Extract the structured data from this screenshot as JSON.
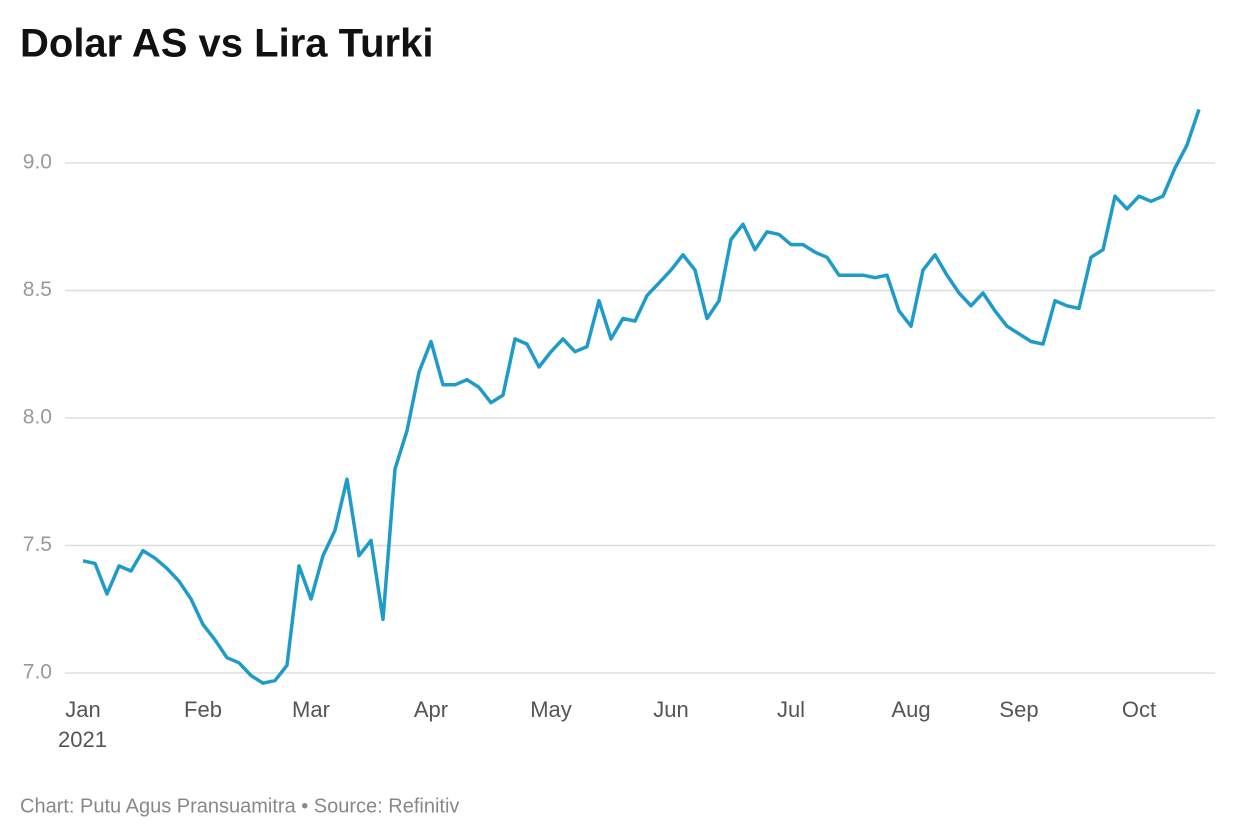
{
  "chart_data": {
    "type": "line",
    "title": "Dolar AS vs Lira Turki",
    "annotation": "2021",
    "footer": "Chart: Putu Agus Pransuamitra • Source: Refinitiv",
    "color": "#1f9bc9",
    "grid": true,
    "categories": [
      "Jan",
      null,
      null,
      null,
      null,
      null,
      null,
      null,
      null,
      null,
      "Feb",
      null,
      null,
      null,
      null,
      null,
      null,
      null,
      null,
      "Mar",
      null,
      null,
      null,
      null,
      null,
      null,
      null,
      null,
      null,
      "Apr",
      null,
      null,
      null,
      null,
      null,
      null,
      null,
      null,
      null,
      "May",
      null,
      null,
      null,
      null,
      null,
      null,
      null,
      null,
      null,
      "Jun",
      null,
      null,
      null,
      null,
      null,
      null,
      null,
      null,
      null,
      "Jul",
      null,
      null,
      null,
      null,
      null,
      null,
      null,
      null,
      null,
      "Aug",
      null,
      null,
      null,
      null,
      null,
      null,
      null,
      null,
      "Sep",
      null,
      null,
      null,
      null,
      null,
      null,
      null,
      null,
      null,
      "Oct",
      null,
      null,
      null,
      null,
      null
    ],
    "values": [
      7.44,
      7.43,
      7.31,
      7.42,
      7.4,
      7.48,
      7.45,
      7.41,
      7.36,
      7.29,
      7.19,
      7.13,
      7.06,
      7.04,
      6.99,
      6.96,
      6.97,
      7.03,
      7.42,
      7.29,
      7.46,
      7.56,
      7.76,
      7.46,
      7.52,
      7.21,
      7.8,
      7.95,
      8.18,
      8.3,
      8.13,
      8.13,
      8.15,
      8.12,
      8.06,
      8.09,
      8.31,
      8.29,
      8.2,
      8.26,
      8.31,
      8.26,
      8.28,
      8.46,
      8.31,
      8.39,
      8.38,
      8.48,
      8.53,
      8.58,
      8.64,
      8.58,
      8.39,
      8.46,
      8.7,
      8.76,
      8.66,
      8.73,
      8.72,
      8.68,
      8.68,
      8.65,
      8.63,
      8.56,
      8.56,
      8.56,
      8.55,
      8.56,
      8.42,
      8.36,
      8.58,
      8.64,
      8.56,
      8.49,
      8.44,
      8.49,
      8.42,
      8.36,
      8.33,
      8.3,
      8.29,
      8.46,
      8.44,
      8.43,
      8.63,
      8.66,
      8.87,
      8.82,
      8.87,
      8.85,
      8.87,
      8.98,
      9.07,
      9.21
    ],
    "ylim": [
      6.93,
      9.25
    ],
    "yticks": [
      {
        "value": 7,
        "label": "7.0"
      },
      {
        "value": 7.5,
        "label": "7.5"
      },
      {
        "value": 8,
        "label": "8.0"
      },
      {
        "value": 8.5,
        "label": "8.5"
      },
      {
        "value": 9,
        "label": "9.0"
      }
    ]
  }
}
